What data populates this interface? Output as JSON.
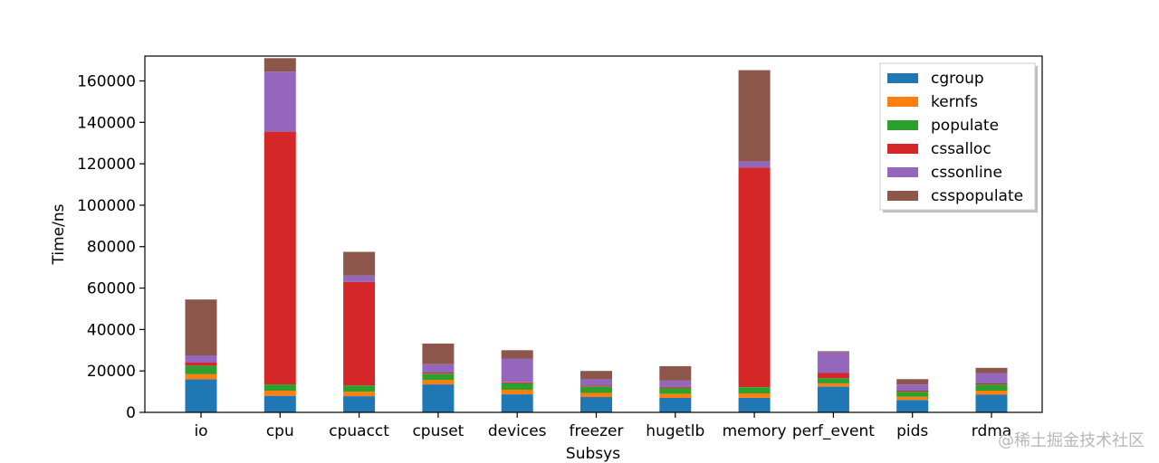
{
  "watermark": "@稀土掘金技术社区",
  "chart_data": {
    "type": "bar",
    "stacked": true,
    "title": "",
    "xlabel": "Subsys",
    "ylabel": "Time/ns",
    "ylim": [
      0,
      172000
    ],
    "yticks": [
      0,
      20000,
      40000,
      60000,
      80000,
      100000,
      120000,
      140000,
      160000
    ],
    "grid": false,
    "legend_position": "top-right",
    "categories": [
      "io",
      "cpu",
      "cpuacct",
      "cpuset",
      "devices",
      "freezer",
      "hugetlb",
      "memory",
      "perf_event",
      "pids",
      "rdma"
    ],
    "series": [
      {
        "name": "cgroup",
        "color": "#1f77b4",
        "values": [
          16000,
          8000,
          7800,
          13500,
          8700,
          7400,
          7000,
          7000,
          12500,
          6000,
          8500
        ]
      },
      {
        "name": "kernfs",
        "color": "#ff7f0e",
        "values": [
          2500,
          2500,
          2200,
          2200,
          2200,
          2000,
          2000,
          2200,
          1500,
          1500,
          2000
        ]
      },
      {
        "name": "populate",
        "color": "#2ca02c",
        "values": [
          4000,
          3000,
          3000,
          3000,
          3100,
          3100,
          2800,
          3000,
          2500,
          2500,
          3000
        ]
      },
      {
        "name": "cssalloc",
        "color": "#d62728",
        "values": [
          1500,
          122000,
          50000,
          500,
          500,
          500,
          500,
          106000,
          2500,
          500,
          500
        ]
      },
      {
        "name": "cssonline",
        "color": "#9467bd",
        "values": [
          3500,
          29000,
          3000,
          4000,
          11500,
          3000,
          3000,
          3000,
          10000,
          3000,
          5000
        ]
      },
      {
        "name": "csspopulate",
        "color": "#8c564b",
        "values": [
          27000,
          6500,
          11500,
          10000,
          4000,
          4000,
          7000,
          44000,
          500,
          2500,
          2500
        ]
      }
    ]
  }
}
